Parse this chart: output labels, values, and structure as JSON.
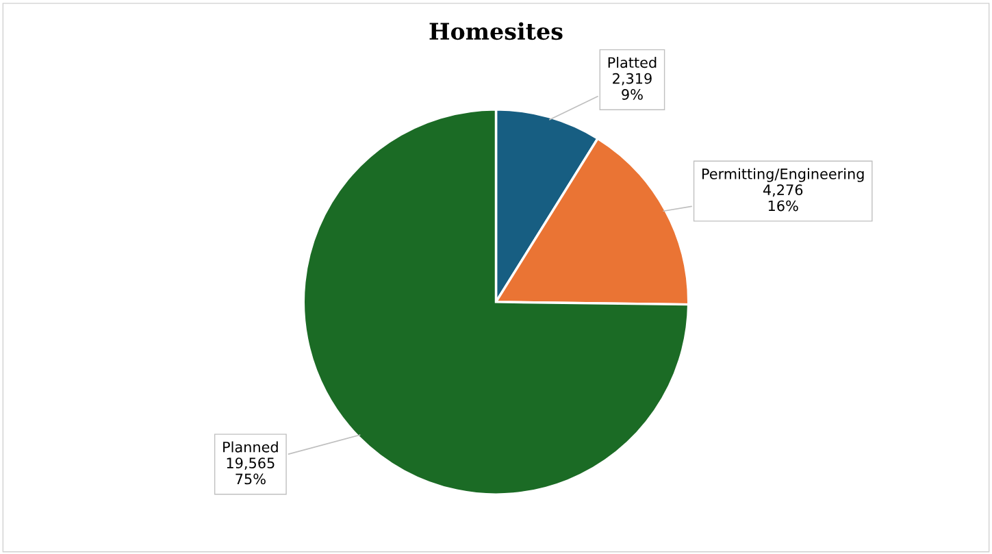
{
  "chart_data": {
    "type": "pie",
    "title": "Homesites",
    "categories": [
      "Platted",
      "Permitting/Engineering",
      "Planned"
    ],
    "values": [
      2319,
      4276,
      19565
    ],
    "colors": [
      "#175e82",
      "#ea7434",
      "#1b6b25"
    ],
    "value_labels": [
      "2,319\n9%",
      "4,276\n16%",
      "19,565\n75%"
    ],
    "legend": false
  }
}
